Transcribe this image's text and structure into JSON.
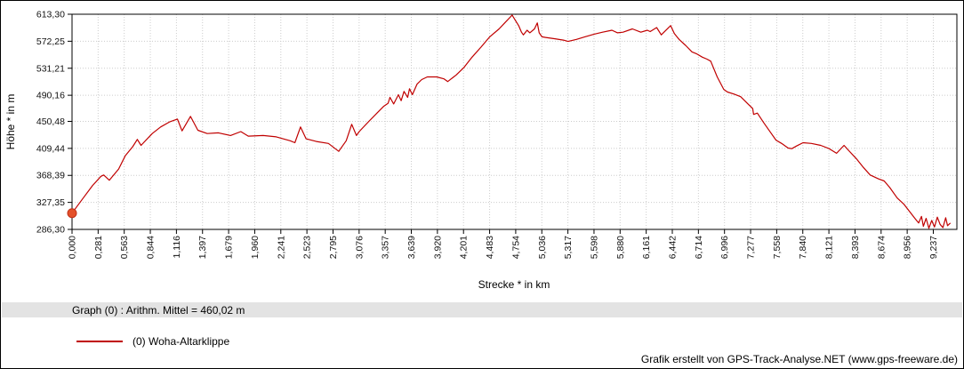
{
  "chart_data": {
    "type": "line",
    "title": "",
    "xlabel": "Strecke *  in  km",
    "ylabel": "Höhe *  in  m",
    "xlim": [
      0,
      9.49
    ],
    "ylim": [
      286.3,
      613.3
    ],
    "grid": "dotted",
    "legend_position": "bottom-left",
    "x_tick_labels": [
      "0,000",
      "0,281",
      "0,563",
      "0,844",
      "1,116",
      "1,397",
      "1,679",
      "1,960",
      "2,241",
      "2,523",
      "2,795",
      "3,076",
      "3,357",
      "3,639",
      "3,920",
      "4,201",
      "4,483",
      "4,754",
      "5,036",
      "5,317",
      "5,598",
      "5,880",
      "6,161",
      "6,442",
      "6,714",
      "6,996",
      "7,277",
      "7,558",
      "7,840",
      "8,121",
      "8,393",
      "8,674",
      "8,956",
      "9,237"
    ],
    "x_tick_max_value": 9.237,
    "y_tick_labels": [
      "613,30",
      "572,25",
      "531,21",
      "490,16",
      "450,48",
      "409,44",
      "368,39",
      "327,35",
      "286,30"
    ],
    "y_tick_values": [
      613.3,
      572.25,
      531.21,
      490.16,
      450.48,
      409.44,
      368.39,
      327.35,
      286.3
    ],
    "series": [
      {
        "name": "(0) Woha-Altarklippe",
        "color": "#c00000",
        "start_marker_color": "#e4512a",
        "points": [
          [
            0.0,
            311
          ],
          [
            0.12,
            334
          ],
          [
            0.22,
            353
          ],
          [
            0.31,
            367
          ],
          [
            0.34,
            369
          ],
          [
            0.4,
            361
          ],
          [
            0.5,
            378
          ],
          [
            0.57,
            398
          ],
          [
            0.65,
            412
          ],
          [
            0.7,
            423
          ],
          [
            0.74,
            414
          ],
          [
            0.86,
            432
          ],
          [
            0.95,
            442
          ],
          [
            1.05,
            450
          ],
          [
            1.13,
            454
          ],
          [
            1.18,
            436
          ],
          [
            1.27,
            458
          ],
          [
            1.35,
            437
          ],
          [
            1.45,
            432
          ],
          [
            1.57,
            433
          ],
          [
            1.7,
            429
          ],
          [
            1.81,
            435
          ],
          [
            1.89,
            428
          ],
          [
            2.05,
            429
          ],
          [
            2.19,
            427
          ],
          [
            2.34,
            421
          ],
          [
            2.39,
            418
          ],
          [
            2.45,
            442
          ],
          [
            2.51,
            424
          ],
          [
            2.62,
            420
          ],
          [
            2.75,
            417
          ],
          [
            2.86,
            405
          ],
          [
            2.94,
            421
          ],
          [
            3.0,
            446
          ],
          [
            3.05,
            429
          ],
          [
            3.08,
            435
          ],
          [
            3.18,
            450
          ],
          [
            3.27,
            463
          ],
          [
            3.34,
            473
          ],
          [
            3.39,
            478
          ],
          [
            3.41,
            487
          ],
          [
            3.45,
            477
          ],
          [
            3.5,
            491
          ],
          [
            3.53,
            482
          ],
          [
            3.56,
            496
          ],
          [
            3.6,
            487
          ],
          [
            3.62,
            500
          ],
          [
            3.65,
            491
          ],
          [
            3.7,
            507
          ],
          [
            3.75,
            514
          ],
          [
            3.81,
            518
          ],
          [
            3.91,
            518
          ],
          [
            3.99,
            515
          ],
          [
            4.03,
            511
          ],
          [
            4.12,
            521
          ],
          [
            4.2,
            532
          ],
          [
            4.29,
            548
          ],
          [
            4.39,
            564
          ],
          [
            4.48,
            579
          ],
          [
            4.58,
            591
          ],
          [
            4.64,
            600
          ],
          [
            4.72,
            612
          ],
          [
            4.75,
            605
          ],
          [
            4.79,
            596
          ],
          [
            4.82,
            586
          ],
          [
            4.84,
            582
          ],
          [
            4.88,
            589
          ],
          [
            4.91,
            585
          ],
          [
            4.96,
            591
          ],
          [
            4.99,
            600
          ],
          [
            5.01,
            585
          ],
          [
            5.04,
            579
          ],
          [
            5.08,
            578
          ],
          [
            5.18,
            576
          ],
          [
            5.27,
            574
          ],
          [
            5.32,
            572
          ],
          [
            5.41,
            575
          ],
          [
            5.5,
            579
          ],
          [
            5.6,
            583
          ],
          [
            5.69,
            586
          ],
          [
            5.79,
            589
          ],
          [
            5.85,
            585
          ],
          [
            5.91,
            586
          ],
          [
            6.01,
            591
          ],
          [
            6.1,
            586
          ],
          [
            6.17,
            589
          ],
          [
            6.2,
            587
          ],
          [
            6.27,
            593
          ],
          [
            6.32,
            582
          ],
          [
            6.42,
            596
          ],
          [
            6.46,
            584
          ],
          [
            6.51,
            575
          ],
          [
            6.58,
            566
          ],
          [
            6.65,
            556
          ],
          [
            6.7,
            553
          ],
          [
            6.76,
            548
          ],
          [
            6.81,
            545
          ],
          [
            6.85,
            542
          ],
          [
            6.92,
            518
          ],
          [
            6.99,
            499
          ],
          [
            7.03,
            495
          ],
          [
            7.1,
            492
          ],
          [
            7.17,
            488
          ],
          [
            7.25,
            477
          ],
          [
            7.3,
            470
          ],
          [
            7.31,
            461
          ],
          [
            7.35,
            463
          ],
          [
            7.42,
            448
          ],
          [
            7.49,
            434
          ],
          [
            7.55,
            422
          ],
          [
            7.61,
            417
          ],
          [
            7.68,
            410
          ],
          [
            7.72,
            409
          ],
          [
            7.77,
            413
          ],
          [
            7.84,
            418
          ],
          [
            7.93,
            417
          ],
          [
            8.03,
            414
          ],
          [
            8.12,
            409
          ],
          [
            8.2,
            402
          ],
          [
            8.28,
            414
          ],
          [
            8.33,
            406
          ],
          [
            8.41,
            394
          ],
          [
            8.49,
            380
          ],
          [
            8.56,
            369
          ],
          [
            8.65,
            363
          ],
          [
            8.71,
            360
          ],
          [
            8.77,
            350
          ],
          [
            8.85,
            334
          ],
          [
            8.92,
            325
          ],
          [
            8.98,
            314
          ],
          [
            9.04,
            303
          ],
          [
            9.08,
            296
          ],
          [
            9.11,
            306
          ],
          [
            9.13,
            291
          ],
          [
            9.16,
            303
          ],
          [
            9.19,
            288
          ],
          [
            9.22,
            300
          ],
          [
            9.25,
            290
          ],
          [
            9.28,
            305
          ],
          [
            9.31,
            294
          ],
          [
            9.34,
            289
          ],
          [
            9.37,
            304
          ],
          [
            9.39,
            292
          ],
          [
            9.42,
            296
          ]
        ]
      }
    ]
  },
  "stats_bar": {
    "text": "Graph (0) :  Arithm. Mittel = 460,02 m"
  },
  "legend": {
    "label": "(0) Woha-Altarklippe",
    "line_color": "#c00000"
  },
  "footer": {
    "text": "Grafik erstellt von GPS-Track-Analyse.NET (www.gps-freeware.de)"
  },
  "colors": {
    "line": "#c00000",
    "start_marker": "#e4512a",
    "grid": "#cccccc",
    "stats_bar_bg": "#e3e3e3",
    "axis": "#000000"
  }
}
